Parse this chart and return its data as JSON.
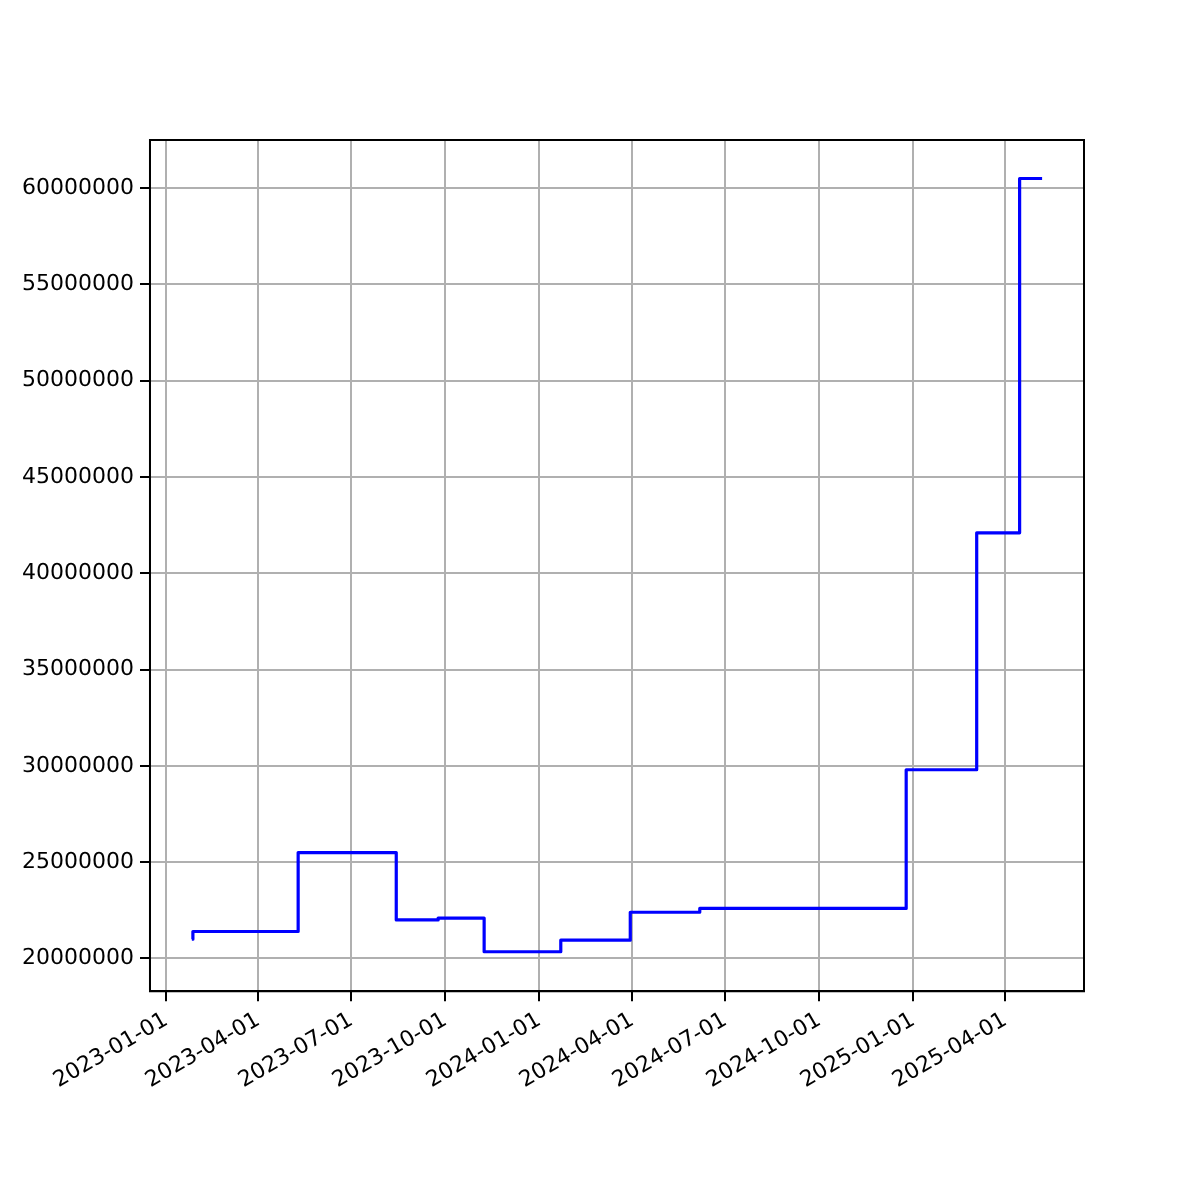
{
  "chart_data": {
    "type": "step",
    "x": [
      "2023-01-26",
      "2023-01-27",
      "2023-05-10",
      "2023-08-14",
      "2023-09-24",
      "2023-11-08",
      "2024-01-22",
      "2024-03-30",
      "2024-06-06",
      "2024-12-25",
      "2025-03-04",
      "2025-04-15",
      "2025-05-07"
    ],
    "series": [
      {
        "color": "#0000ff",
        "values": [
          21000000,
          21400000,
          25500000,
          22000000,
          22100000,
          20350000,
          20950000,
          22400000,
          22600000,
          29800000,
          42100000,
          60500000,
          60500000
        ]
      }
    ],
    "xlim": [
      "2022-12-16",
      "2025-06-17"
    ],
    "xticks": [
      "2023-01-01",
      "2023-04-01",
      "2023-07-01",
      "2023-10-01",
      "2024-01-01",
      "2024-04-01",
      "2024-07-01",
      "2024-10-01",
      "2025-01-01",
      "2025-04-01"
    ],
    "ylim": [
      18300000,
      62500000
    ],
    "yticks": [
      20000000,
      25000000,
      30000000,
      35000000,
      40000000,
      45000000,
      50000000,
      55000000,
      60000000
    ],
    "grid": true
  }
}
